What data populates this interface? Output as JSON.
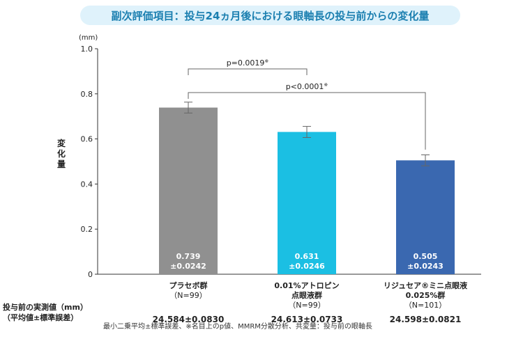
{
  "title": "副次評価項目：投与24ヵ月後における眼軸長の投与前からの変化量",
  "chart_data": {
    "type": "bar",
    "unit_label": "(mm)",
    "ylabel": "変化量",
    "ylim": [
      0,
      1.0
    ],
    "yticks": [
      "0",
      "0.2",
      "0.4",
      "0.6",
      "0.8",
      "1.0"
    ],
    "categories": [
      {
        "name": "プラセボ群",
        "name_line2": "",
        "n": "（N=99）",
        "color": "#909090"
      },
      {
        "name": "0.01%アトロピン",
        "name_line2": "点眼液群",
        "n": "（N=99）",
        "color": "#1bbfe3"
      },
      {
        "name": "リジュセア®ミニ点眼液",
        "name_line2": "0.025%群",
        "n": "（N=101）",
        "color": "#3a68b0"
      }
    ],
    "values": [
      0.739,
      0.631,
      0.505
    ],
    "errors": [
      0.0242,
      0.0246,
      0.0243
    ],
    "value_labels": [
      "0.739",
      "0.631",
      "0.505"
    ],
    "error_labels": [
      "±0.0242",
      "±0.0246",
      "±0.0243"
    ],
    "comparisons": [
      {
        "label": "p=0.0019",
        "mark": "※"
      },
      {
        "label": "p<0.0001",
        "mark": "※"
      }
    ]
  },
  "baseline": {
    "label_line1": "投与前の実測値（mm）",
    "label_line2": "（平均値±標準誤差）",
    "values": [
      "24.584±0.0830",
      "24.613±0.0733",
      "24.598±0.0821"
    ]
  },
  "footnote": "最小二乗平均±標準誤差、※名目上のp値、MMRM分散分析、共変量：投与前の眼軸長"
}
